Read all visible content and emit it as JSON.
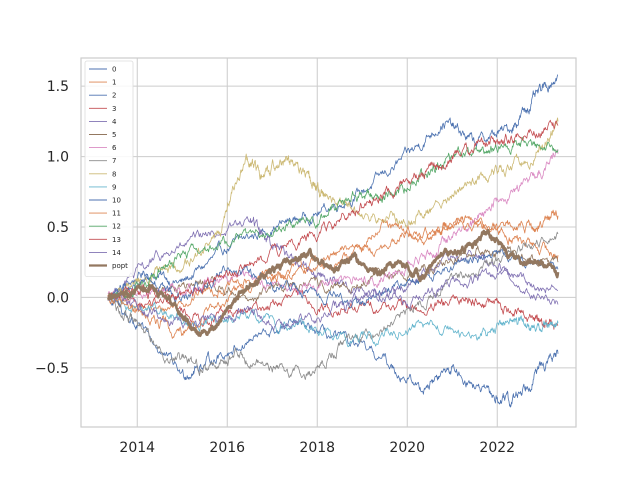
{
  "chart_data": {
    "type": "line",
    "x_range": [
      "2013-05-01",
      "2023-05-01"
    ],
    "xlim": [
      "2012-10-01",
      "2023-10-01"
    ],
    "ylim": [
      -0.92,
      1.7
    ],
    "x_ticks": [
      "2014",
      "2016",
      "2018",
      "2020",
      "2022"
    ],
    "y_ticks": [
      "−0.5",
      "0.0",
      "0.5",
      "1.0",
      "1.5"
    ],
    "y_tick_values": [
      -0.5,
      0.0,
      0.5,
      1.0,
      1.5
    ],
    "grid": true,
    "legend_position": "top-left",
    "series": [
      {
        "name": "0",
        "color": "#4c72b0",
        "values": [
          [
            2013.35,
            0
          ],
          [
            2014.2,
            0.18
          ],
          [
            2015.0,
            0.1
          ],
          [
            2016.0,
            0.35
          ],
          [
            2017.0,
            0.5
          ],
          [
            2018.0,
            0.6
          ],
          [
            2019.0,
            0.75
          ],
          [
            2020.0,
            1.0
          ],
          [
            2020.8,
            1.25
          ],
          [
            2021.5,
            1.1
          ],
          [
            2022.3,
            1.2
          ],
          [
            2022.8,
            1.4
          ],
          [
            2023.35,
            1.58
          ]
        ]
      },
      {
        "name": "1",
        "color": "#dd8452",
        "values": [
          [
            2013.35,
            0
          ],
          [
            2014.5,
            -0.1
          ],
          [
            2015.5,
            0.05
          ],
          [
            2016.5,
            0.1
          ],
          [
            2017.5,
            0.2
          ],
          [
            2018.5,
            0.3
          ],
          [
            2019.5,
            0.5
          ],
          [
            2020.5,
            0.4
          ],
          [
            2021.0,
            0.55
          ],
          [
            2021.8,
            0.5
          ],
          [
            2022.5,
            0.4
          ],
          [
            2023.35,
            0.3
          ]
        ]
      },
      {
        "name": "2",
        "color": "#4c72b0",
        "values": [
          [
            2013.35,
            0
          ],
          [
            2014.0,
            -0.2
          ],
          [
            2015.0,
            -0.55
          ],
          [
            2015.6,
            -0.45
          ],
          [
            2016.5,
            -0.3
          ],
          [
            2017.5,
            -0.2
          ],
          [
            2018.5,
            -0.3
          ],
          [
            2019.5,
            -0.45
          ],
          [
            2020.3,
            -0.65
          ],
          [
            2021.0,
            -0.5
          ],
          [
            2021.8,
            -0.7
          ],
          [
            2022.3,
            -0.75
          ],
          [
            2022.8,
            -0.55
          ],
          [
            2023.35,
            -0.4
          ]
        ]
      },
      {
        "name": "3",
        "color": "#c44e52",
        "values": [
          [
            2013.35,
            0
          ],
          [
            2014.5,
            -0.05
          ],
          [
            2015.5,
            -0.15
          ],
          [
            2016.5,
            -0.1
          ],
          [
            2017.5,
            0.0
          ],
          [
            2018.5,
            -0.1
          ],
          [
            2019.5,
            -0.05
          ],
          [
            2020.5,
            -0.1
          ],
          [
            2021.3,
            0.0
          ],
          [
            2022.0,
            -0.05
          ],
          [
            2022.8,
            -0.15
          ],
          [
            2023.35,
            -0.2
          ]
        ]
      },
      {
        "name": "4",
        "color": "#8172b3",
        "values": [
          [
            2013.35,
            0
          ],
          [
            2014.3,
            0.25
          ],
          [
            2015.3,
            0.4
          ],
          [
            2016.5,
            0.55
          ],
          [
            2017.0,
            0.4
          ],
          [
            2017.8,
            0.2
          ],
          [
            2018.5,
            0.1
          ],
          [
            2019.5,
            0.0
          ],
          [
            2020.5,
            0.2
          ],
          [
            2021.5,
            0.3
          ],
          [
            2022.3,
            0.15
          ],
          [
            2023.35,
            0.05
          ]
        ]
      },
      {
        "name": "5",
        "color": "#937860",
        "values": [
          [
            2013.35,
            0
          ],
          [
            2014.5,
            0.05
          ],
          [
            2015.5,
            0.1
          ],
          [
            2016.5,
            0.0
          ],
          [
            2017.5,
            0.1
          ],
          [
            2018.5,
            0.05
          ],
          [
            2019.5,
            0.15
          ],
          [
            2020.5,
            0.2
          ],
          [
            2021.5,
            0.35
          ],
          [
            2022.3,
            0.3
          ],
          [
            2023.35,
            0.25
          ]
        ]
      },
      {
        "name": "6",
        "color": "#da8bc3",
        "values": [
          [
            2013.35,
            0
          ],
          [
            2014.5,
            0.05
          ],
          [
            2015.5,
            0.1
          ],
          [
            2016.5,
            0.15
          ],
          [
            2017.5,
            0.05
          ],
          [
            2018.5,
            0.1
          ],
          [
            2019.5,
            0.15
          ],
          [
            2020.5,
            0.3
          ],
          [
            2021.3,
            0.5
          ],
          [
            2022.0,
            0.7
          ],
          [
            2022.8,
            0.85
          ],
          [
            2023.35,
            1.02
          ]
        ]
      },
      {
        "name": "7",
        "color": "#8c8c8c",
        "values": [
          [
            2013.35,
            0
          ],
          [
            2014.0,
            -0.2
          ],
          [
            2014.8,
            -0.45
          ],
          [
            2015.5,
            -0.5
          ],
          [
            2016.2,
            -0.4
          ],
          [
            2017.0,
            -0.5
          ],
          [
            2017.8,
            -0.55
          ],
          [
            2018.5,
            -0.35
          ],
          [
            2019.5,
            -0.2
          ],
          [
            2020.5,
            0.0
          ],
          [
            2021.5,
            0.2
          ],
          [
            2022.3,
            0.3
          ],
          [
            2023.35,
            0.45
          ]
        ]
      },
      {
        "name": "8",
        "color": "#ccb974",
        "values": [
          [
            2013.35,
            0
          ],
          [
            2014.2,
            0.15
          ],
          [
            2015.0,
            0.2
          ],
          [
            2015.8,
            0.45
          ],
          [
            2016.4,
            0.98
          ],
          [
            2016.8,
            0.85
          ],
          [
            2017.3,
            1.0
          ],
          [
            2017.8,
            0.85
          ],
          [
            2018.2,
            0.7
          ],
          [
            2019.0,
            0.6
          ],
          [
            2019.8,
            0.55
          ],
          [
            2020.5,
            0.6
          ],
          [
            2021.3,
            0.8
          ],
          [
            2022.0,
            0.9
          ],
          [
            2022.8,
            1.0
          ],
          [
            2023.35,
            1.25
          ]
        ]
      },
      {
        "name": "9",
        "color": "#64b5cd",
        "values": [
          [
            2013.35,
            0
          ],
          [
            2014.5,
            -0.1
          ],
          [
            2015.5,
            -0.2
          ],
          [
            2016.5,
            -0.15
          ],
          [
            2017.5,
            -0.2
          ],
          [
            2018.5,
            -0.3
          ],
          [
            2019.5,
            -0.25
          ],
          [
            2020.5,
            -0.2
          ],
          [
            2021.5,
            -0.3
          ],
          [
            2022.3,
            -0.15
          ],
          [
            2022.8,
            -0.25
          ],
          [
            2023.35,
            -0.18
          ]
        ]
      },
      {
        "name": "10",
        "color": "#4c72b0",
        "values": [
          [
            2013.35,
            0
          ],
          [
            2014.2,
            0.1
          ],
          [
            2015.0,
            0.0
          ],
          [
            2016.0,
            0.2
          ],
          [
            2017.0,
            0.1
          ],
          [
            2018.0,
            0.0
          ],
          [
            2019.0,
            -0.05
          ],
          [
            2020.0,
            0.1
          ],
          [
            2021.0,
            0.2
          ],
          [
            2022.0,
            0.3
          ],
          [
            2023.35,
            0.2
          ]
        ]
      },
      {
        "name": "11",
        "color": "#dd8452",
        "values": [
          [
            2013.35,
            0
          ],
          [
            2014.3,
            -0.15
          ],
          [
            2015.0,
            -0.25
          ],
          [
            2016.0,
            0.0
          ],
          [
            2017.0,
            0.15
          ],
          [
            2018.0,
            0.2
          ],
          [
            2019.0,
            0.3
          ],
          [
            2020.0,
            0.45
          ],
          [
            2021.0,
            0.5
          ],
          [
            2022.0,
            0.5
          ],
          [
            2022.8,
            0.5
          ],
          [
            2023.35,
            0.58
          ]
        ]
      },
      {
        "name": "12",
        "color": "#55a868",
        "values": [
          [
            2013.35,
            0
          ],
          [
            2014.2,
            0.1
          ],
          [
            2015.0,
            0.3
          ],
          [
            2016.0,
            0.4
          ],
          [
            2017.0,
            0.5
          ],
          [
            2018.0,
            0.55
          ],
          [
            2018.8,
            0.75
          ],
          [
            2019.5,
            0.7
          ],
          [
            2020.3,
            0.85
          ],
          [
            2021.0,
            1.0
          ],
          [
            2021.8,
            1.05
          ],
          [
            2022.5,
            1.1
          ],
          [
            2023.35,
            1.05
          ]
        ]
      },
      {
        "name": "13",
        "color": "#c44e52",
        "values": [
          [
            2013.35,
            0
          ],
          [
            2014.2,
            0.05
          ],
          [
            2015.0,
            0.0
          ],
          [
            2016.0,
            0.15
          ],
          [
            2017.0,
            0.3
          ],
          [
            2018.0,
            0.45
          ],
          [
            2018.8,
            0.6
          ],
          [
            2019.5,
            0.75
          ],
          [
            2020.3,
            0.85
          ],
          [
            2021.0,
            1.0
          ],
          [
            2021.8,
            1.1
          ],
          [
            2022.5,
            1.15
          ],
          [
            2023.35,
            1.22
          ]
        ]
      },
      {
        "name": "14",
        "color": "#8172b3",
        "values": [
          [
            2013.35,
            0
          ],
          [
            2014.3,
            -0.1
          ],
          [
            2015.3,
            -0.2
          ],
          [
            2016.3,
            -0.1
          ],
          [
            2017.3,
            -0.2
          ],
          [
            2018.3,
            -0.1
          ],
          [
            2019.0,
            0.05
          ],
          [
            2020.0,
            -0.05
          ],
          [
            2021.0,
            0.1
          ],
          [
            2022.0,
            0.15
          ],
          [
            2023.35,
            -0.05
          ]
        ]
      },
      {
        "name": "popt",
        "color": "#937860",
        "values": [
          [
            2013.35,
            0
          ],
          [
            2013.8,
            0.02
          ],
          [
            2014.3,
            0.08
          ],
          [
            2014.8,
            -0.05
          ],
          [
            2015.3,
            -0.25
          ],
          [
            2015.8,
            -0.2
          ],
          [
            2016.3,
            0.05
          ],
          [
            2016.8,
            0.15
          ],
          [
            2017.3,
            0.25
          ],
          [
            2017.8,
            0.3
          ],
          [
            2018.3,
            0.2
          ],
          [
            2018.8,
            0.28
          ],
          [
            2019.3,
            0.18
          ],
          [
            2019.8,
            0.25
          ],
          [
            2020.3,
            0.15
          ],
          [
            2020.8,
            0.3
          ],
          [
            2021.3,
            0.35
          ],
          [
            2021.8,
            0.45
          ],
          [
            2022.3,
            0.3
          ],
          [
            2022.8,
            0.25
          ],
          [
            2023.35,
            0.18
          ]
        ]
      }
    ]
  }
}
